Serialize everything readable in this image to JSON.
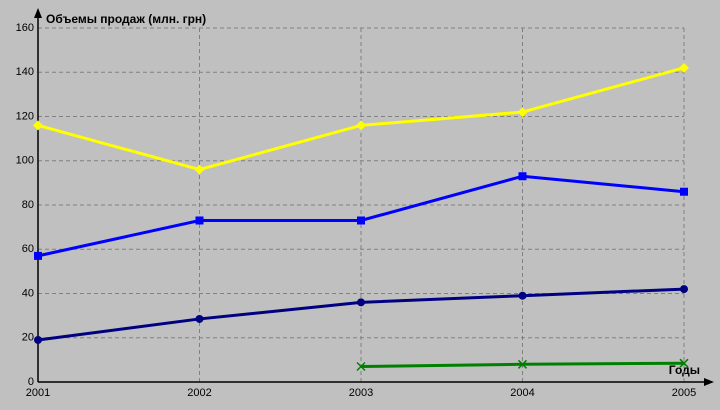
{
  "chart_data": {
    "type": "line",
    "y_label": "Объемы продаж (млн. грн)",
    "x_label": "Годы",
    "categories": [
      "2001",
      "2002",
      "2003",
      "2004",
      "2005"
    ],
    "series": [
      {
        "color": "#ffff00",
        "marker": "diamond",
        "values": [
          116,
          96,
          116,
          122,
          142
        ]
      },
      {
        "color": "#0000ff",
        "marker": "square",
        "values": [
          57,
          73,
          73,
          93,
          86
        ]
      },
      {
        "color": "#000080",
        "marker": "circle",
        "values": [
          19,
          28.5,
          36,
          39,
          42
        ]
      },
      {
        "color": "#008000",
        "marker": "x",
        "values": [
          null,
          null,
          7,
          8,
          8.5
        ]
      }
    ],
    "ylim": [
      0,
      160
    ],
    "yticks": [
      0,
      20,
      40,
      60,
      80,
      100,
      120,
      140,
      160
    ],
    "grid": true
  }
}
